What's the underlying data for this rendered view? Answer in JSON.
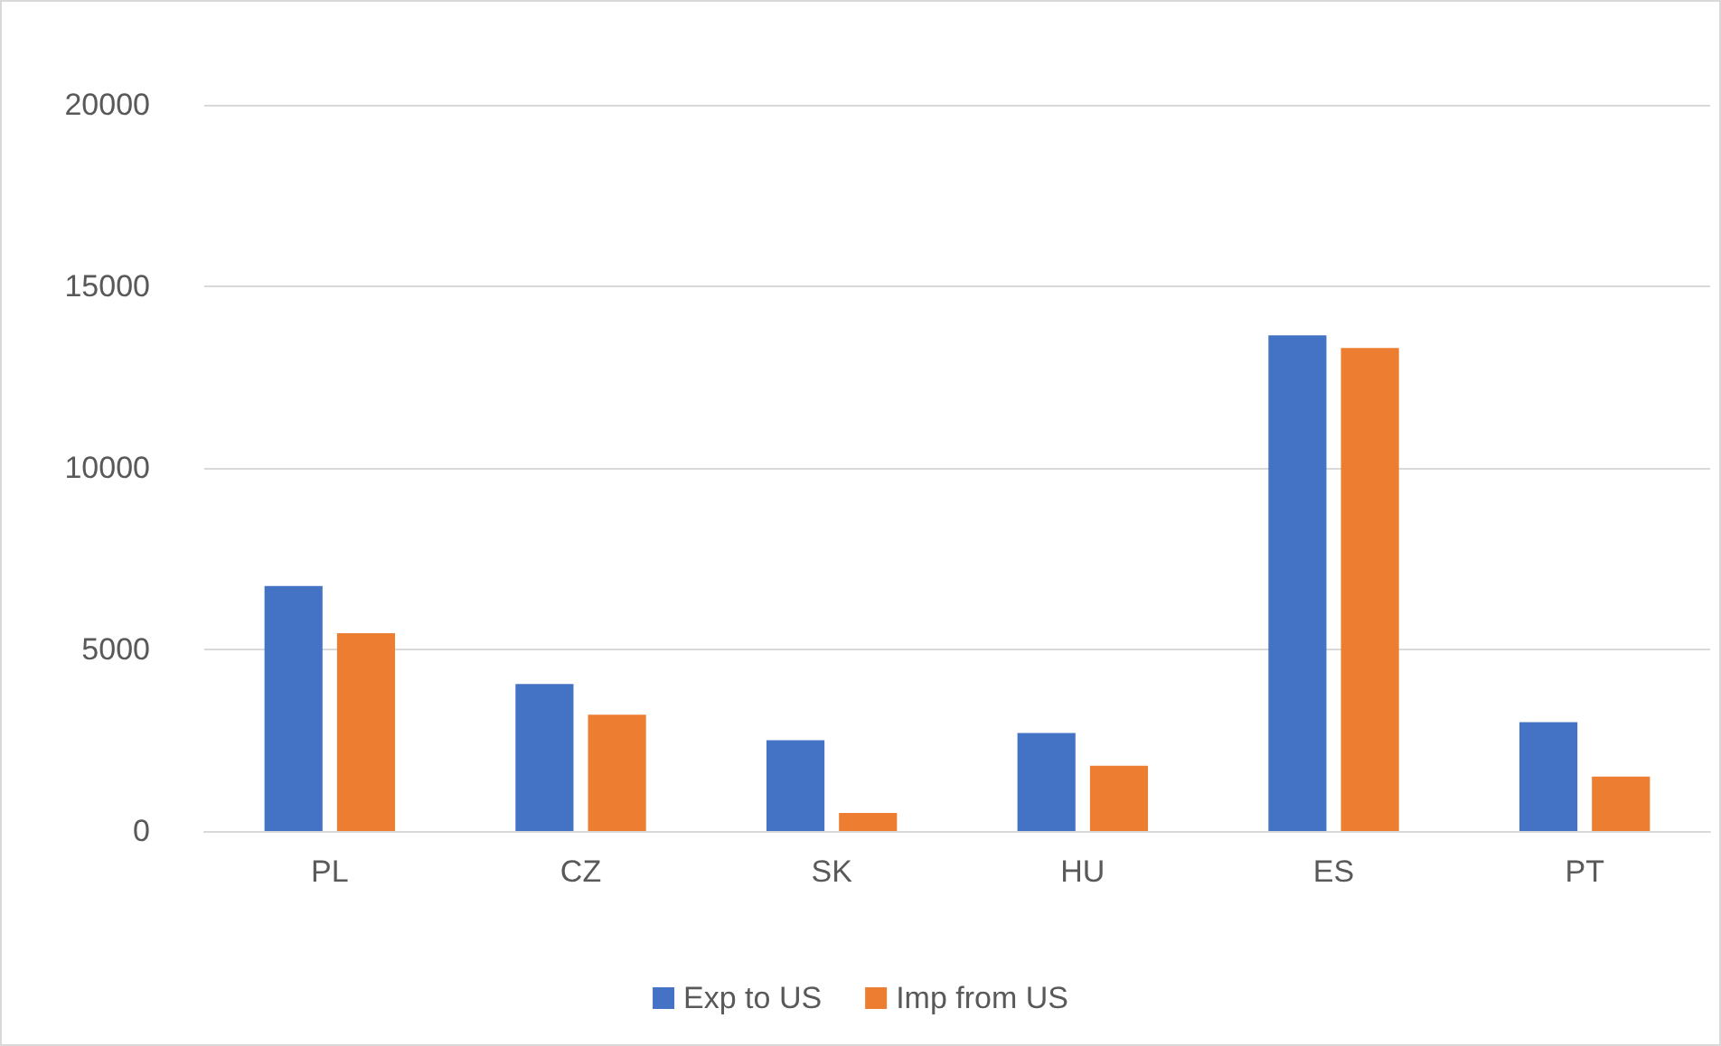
{
  "chart_data": {
    "type": "bar",
    "categories": [
      "PL",
      "CZ",
      "SK",
      "HU",
      "ES",
      "PT"
    ],
    "series": [
      {
        "name": "Exp to US",
        "color": "#4472c4",
        "values": [
          6750,
          4050,
          2500,
          2700,
          13650,
          3000
        ]
      },
      {
        "name": "Imp from US",
        "color": "#ed7d31",
        "values": [
          5450,
          3200,
          500,
          1800,
          13300,
          1500
        ]
      }
    ],
    "ylim": [
      0,
      20000
    ],
    "yticks": [
      0,
      5000,
      10000,
      15000,
      20000
    ],
    "grid": "y",
    "legend": "bottom"
  }
}
